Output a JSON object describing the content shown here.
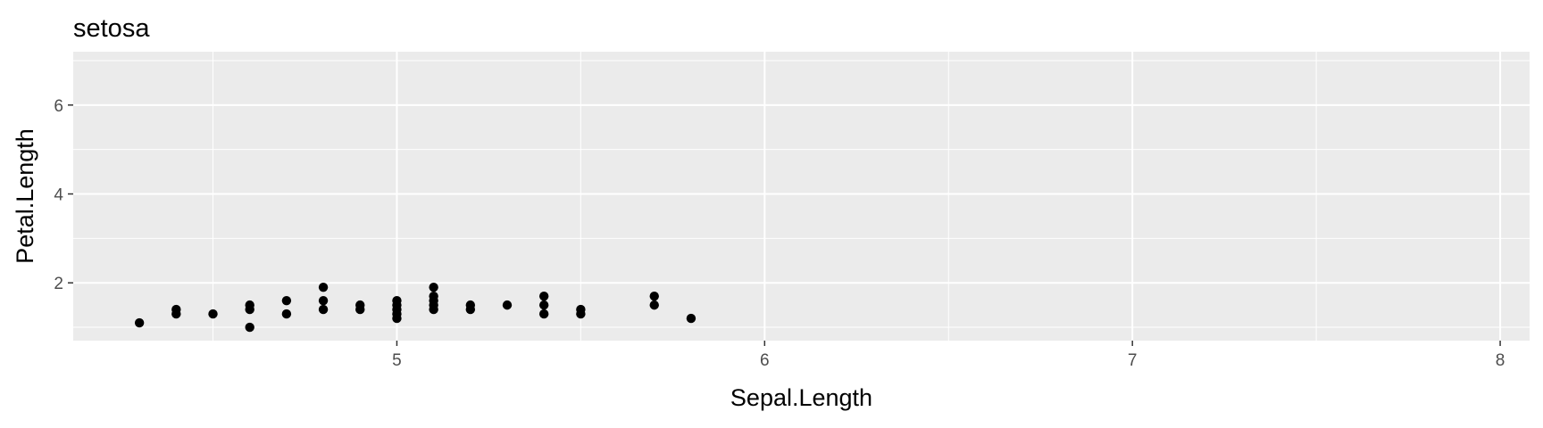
{
  "chart_data": {
    "type": "scatter",
    "title": "setosa",
    "xlabel": "Sepal.Length",
    "ylabel": "Petal.Length",
    "xlim": [
      4.12,
      8.08
    ],
    "ylim": [
      0.7,
      7.2
    ],
    "x_ticks": [
      5,
      6,
      7,
      8
    ],
    "y_ticks": [
      2,
      4,
      6
    ],
    "grid": true,
    "colors": {
      "panel": "#EBEBEB",
      "grid": "#FFFFFF",
      "point": "#000000",
      "tick_text": "#4D4D4D"
    },
    "points": [
      [
        4.3,
        1.1
      ],
      [
        4.4,
        1.3
      ],
      [
        4.4,
        1.4
      ],
      [
        4.5,
        1.3
      ],
      [
        4.6,
        1.0
      ],
      [
        4.6,
        1.4
      ],
      [
        4.6,
        1.5
      ],
      [
        4.7,
        1.3
      ],
      [
        4.7,
        1.6
      ],
      [
        4.8,
        1.4
      ],
      [
        4.8,
        1.6
      ],
      [
        4.8,
        1.9
      ],
      [
        4.9,
        1.4
      ],
      [
        4.9,
        1.5
      ],
      [
        5.0,
        1.2
      ],
      [
        5.0,
        1.3
      ],
      [
        5.0,
        1.4
      ],
      [
        5.0,
        1.5
      ],
      [
        5.0,
        1.6
      ],
      [
        5.1,
        1.4
      ],
      [
        5.1,
        1.5
      ],
      [
        5.1,
        1.6
      ],
      [
        5.1,
        1.7
      ],
      [
        5.1,
        1.9
      ],
      [
        5.2,
        1.4
      ],
      [
        5.2,
        1.5
      ],
      [
        5.3,
        1.5
      ],
      [
        5.4,
        1.3
      ],
      [
        5.4,
        1.5
      ],
      [
        5.4,
        1.7
      ],
      [
        5.5,
        1.3
      ],
      [
        5.5,
        1.4
      ],
      [
        5.7,
        1.5
      ],
      [
        5.7,
        1.7
      ],
      [
        5.8,
        1.2
      ]
    ]
  }
}
